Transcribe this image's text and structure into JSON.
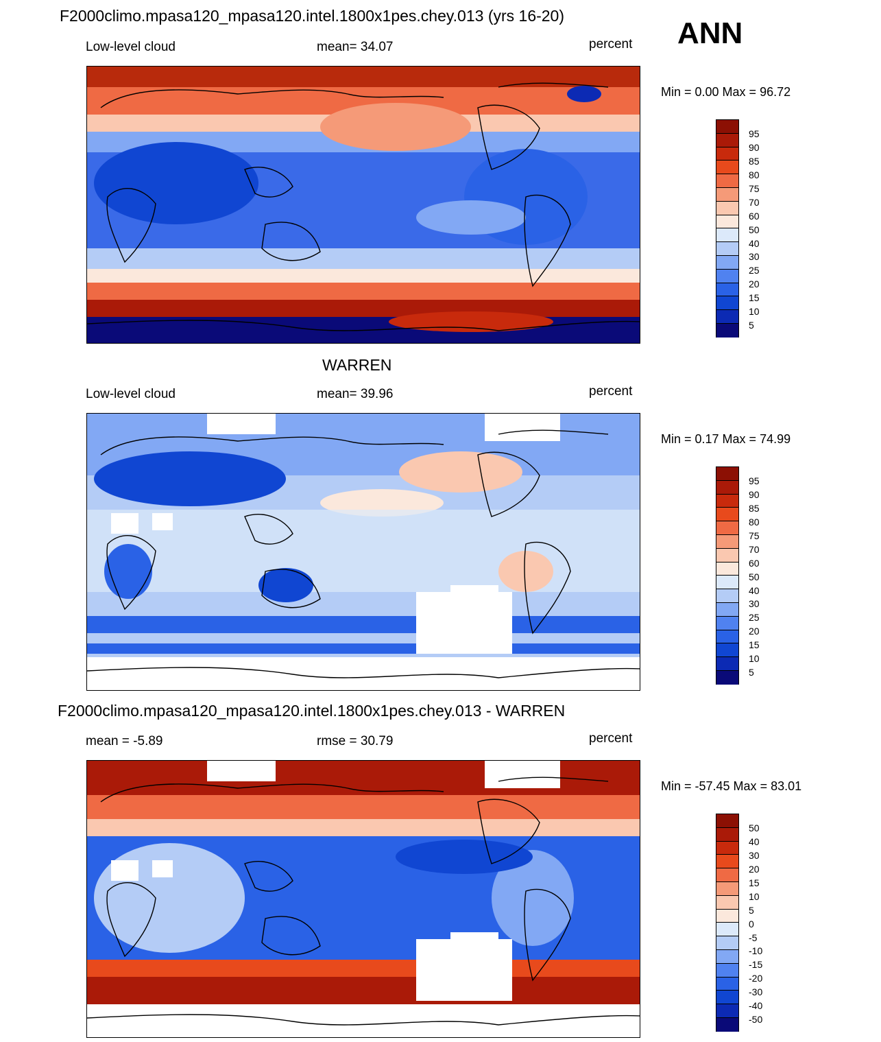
{
  "header": {
    "main_title": "F2000climo.mpasa120_mpasa120.intel.1800x1pes.chey.013 (yrs 16-20)",
    "season": "ANN"
  },
  "colors": {
    "abs_scale": [
      "#0a0a78",
      "#0c2ab4",
      "#1046d2",
      "#2a62e6",
      "#5082f0",
      "#82a8f4",
      "#b4ccf6",
      "#dce9fa",
      "#fbe8dc",
      "#fac8b0",
      "#f59a78",
      "#ef6a44",
      "#e84a1c",
      "#c82a0c",
      "#aa1a08",
      "#8c1004"
    ],
    "diff_scale": [
      "#0a0a78",
      "#0c2ab4",
      "#1046d2",
      "#2a62e6",
      "#5082f0",
      "#82a8f4",
      "#b4ccf6",
      "#dce9fa",
      "#fbe8dc",
      "#fac8b0",
      "#f59a78",
      "#ef6a44",
      "#e84a1c",
      "#c82a0c",
      "#aa1a08",
      "#8c1004"
    ],
    "land": "#000000"
  },
  "panel1": {
    "field": "Low-level cloud",
    "stat_text": "mean=  34.07",
    "units": "percent",
    "minmax": "Min =    0.00 Max =  96.72",
    "labels": [
      "95",
      "90",
      "85",
      "80",
      "75",
      "70",
      "60",
      "50",
      "40",
      "30",
      "25",
      "20",
      "15",
      "10",
      "5"
    ]
  },
  "panel2": {
    "title": "WARREN",
    "field": "Low-level cloud",
    "stat_text": "mean=  39.96",
    "units": "percent",
    "minmax": "Min =   0.17 Max =  74.99",
    "labels": [
      "95",
      "90",
      "85",
      "80",
      "75",
      "70",
      "60",
      "50",
      "40",
      "30",
      "25",
      "20",
      "15",
      "10",
      "5"
    ]
  },
  "panel3": {
    "title": "F2000climo.mpasa120_mpasa120.intel.1800x1pes.chey.013 - WARREN",
    "stat_left": "mean =  -5.89",
    "stat_mid": "rmse =  30.79",
    "units": "percent",
    "minmax": "Min = -57.45 Max =  83.01",
    "labels": [
      "50",
      "40",
      "30",
      "20",
      "15",
      "10",
      "5",
      "0",
      "-5",
      "-10",
      "-15",
      "-20",
      "-30",
      "-40",
      "-50"
    ]
  }
}
